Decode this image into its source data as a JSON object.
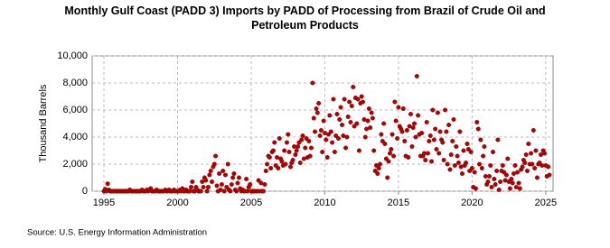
{
  "chart_data": {
    "type": "scatter",
    "title": "Monthly Gulf Coast (PADD 3) Imports by PADD of Processing from Brazil of Crude Oil and Petroleum Products",
    "y_label": "Thousand Barrels",
    "source": "Source: U.S. Energy Information Administration",
    "color": "#b30000",
    "grid": true,
    "xlim": [
      1994.2,
      2025.5
    ],
    "xticks": [
      1995,
      2000,
      2005,
      2010,
      2015,
      2020,
      2025
    ],
    "ylim": [
      0,
      10000
    ],
    "yticks": [
      0,
      {
        "value": 2000,
        "label": "2,000"
      },
      {
        "value": 4000,
        "label": "4,000"
      },
      {
        "value": 6000,
        "label": "6,000"
      },
      {
        "value": 8000,
        "label": "8,000"
      },
      {
        "value": 10000,
        "label": "10,000"
      }
    ],
    "x": [
      1995,
      1995.08,
      1995.17,
      1995.25,
      1995.33,
      1995.42,
      1995.5,
      1995.58,
      1995.67,
      1995.75,
      1995.83,
      1995.92,
      1996,
      1996.08,
      1996.17,
      1996.25,
      1996.33,
      1996.42,
      1996.5,
      1996.58,
      1996.67,
      1996.75,
      1996.83,
      1996.92,
      1997,
      1997.08,
      1997.17,
      1997.25,
      1997.33,
      1997.42,
      1997.5,
      1997.58,
      1997.67,
      1997.75,
      1997.83,
      1997.92,
      1998,
      1998.08,
      1998.17,
      1998.25,
      1998.33,
      1998.42,
      1998.5,
      1998.58,
      1998.67,
      1998.75,
      1998.83,
      1998.92,
      1999,
      1999.08,
      1999.17,
      1999.25,
      1999.33,
      1999.42,
      1999.5,
      1999.58,
      1999.67,
      1999.75,
      1999.83,
      1999.92,
      2000,
      2000.08,
      2000.17,
      2000.25,
      2000.33,
      2000.42,
      2000.5,
      2000.58,
      2000.67,
      2000.75,
      2000.83,
      2000.92,
      2001,
      2001.08,
      2001.17,
      2001.25,
      2001.33,
      2001.42,
      2001.5,
      2001.58,
      2001.67,
      2001.75,
      2001.83,
      2001.92,
      2002,
      2002.08,
      2002.17,
      2002.25,
      2002.33,
      2002.42,
      2002.5,
      2002.58,
      2002.67,
      2002.75,
      2002.83,
      2002.92,
      2003,
      2003.08,
      2003.17,
      2003.25,
      2003.33,
      2003.42,
      2003.5,
      2003.58,
      2003.67,
      2003.75,
      2003.83,
      2003.92,
      2004,
      2004.08,
      2004.17,
      2004.25,
      2004.33,
      2004.42,
      2004.5,
      2004.58,
      2004.67,
      2004.75,
      2004.83,
      2004.92,
      2005,
      2005.08,
      2005.17,
      2005.25,
      2005.33,
      2005.42,
      2005.5,
      2005.58,
      2005.67,
      2005.75,
      2005.83,
      2005.92,
      2006,
      2006.08,
      2006.17,
      2006.25,
      2006.33,
      2006.42,
      2006.5,
      2006.58,
      2006.67,
      2006.75,
      2006.83,
      2006.92,
      2007,
      2007.08,
      2007.17,
      2007.25,
      2007.33,
      2007.42,
      2007.5,
      2007.58,
      2007.67,
      2007.75,
      2007.83,
      2007.92,
      2008,
      2008.08,
      2008.17,
      2008.25,
      2008.33,
      2008.42,
      2008.5,
      2008.58,
      2008.67,
      2008.75,
      2008.83,
      2008.92,
      2009,
      2009.08,
      2009.17,
      2009.25,
      2009.33,
      2009.42,
      2009.5,
      2009.58,
      2009.67,
      2009.75,
      2009.83,
      2009.92,
      2010,
      2010.08,
      2010.17,
      2010.25,
      2010.33,
      2010.42,
      2010.5,
      2010.58,
      2010.67,
      2010.75,
      2010.83,
      2010.92,
      2011,
      2011.08,
      2011.17,
      2011.25,
      2011.33,
      2011.42,
      2011.5,
      2011.58,
      2011.67,
      2011.75,
      2011.83,
      2011.92,
      2012,
      2012.08,
      2012.17,
      2012.25,
      2012.33,
      2012.42,
      2012.5,
      2012.58,
      2012.67,
      2012.75,
      2012.83,
      2012.92,
      2013,
      2013.08,
      2013.17,
      2013.25,
      2013.33,
      2013.42,
      2013.5,
      2013.58,
      2013.67,
      2013.75,
      2013.83,
      2013.92,
      2014,
      2014.08,
      2014.17,
      2014.25,
      2014.33,
      2014.42,
      2014.5,
      2014.58,
      2014.67,
      2014.75,
      2014.83,
      2014.92,
      2015,
      2015.08,
      2015.17,
      2015.25,
      2015.33,
      2015.42,
      2015.5,
      2015.58,
      2015.67,
      2015.75,
      2015.83,
      2015.92,
      2016,
      2016.08,
      2016.17,
      2016.25,
      2016.33,
      2016.42,
      2016.5,
      2016.58,
      2016.67,
      2016.75,
      2016.83,
      2016.92,
      2017,
      2017.08,
      2017.17,
      2017.25,
      2017.33,
      2017.42,
      2017.5,
      2017.58,
      2017.67,
      2017.75,
      2017.83,
      2017.92,
      2018,
      2018.08,
      2018.17,
      2018.25,
      2018.33,
      2018.42,
      2018.5,
      2018.58,
      2018.67,
      2018.75,
      2018.83,
      2018.92,
      2019,
      2019.08,
      2019.17,
      2019.25,
      2019.33,
      2019.42,
      2019.5,
      2019.58,
      2019.67,
      2019.75,
      2019.83,
      2019.92,
      2020,
      2020.08,
      2020.17,
      2020.25,
      2020.33,
      2020.42,
      2020.5,
      2020.58,
      2020.67,
      2020.75,
      2020.83,
      2020.92,
      2021,
      2021.08,
      2021.17,
      2021.25,
      2021.33,
      2021.42,
      2021.5,
      2021.58,
      2021.67,
      2021.75,
      2021.83,
      2021.92,
      2022,
      2022.08,
      2022.17,
      2022.25,
      2022.33,
      2022.42,
      2022.5,
      2022.58,
      2022.67,
      2022.75,
      2022.83,
      2022.92,
      2023,
      2023.08,
      2023.17,
      2023.25,
      2023.33,
      2023.42,
      2023.5,
      2023.58,
      2023.67,
      2023.75,
      2023.83,
      2023.92,
      2024,
      2024.08,
      2024.17,
      2024.25,
      2024.33,
      2024.42,
      2024.5,
      2024.58,
      2024.67,
      2024.75,
      2024.83,
      2024.92,
      2025,
      2025.08,
      2025.17,
      2025.25
    ],
    "values": [
      0,
      150,
      0,
      550,
      100,
      0,
      0,
      0,
      0,
      0,
      0,
      0,
      0,
      0,
      0,
      0,
      0,
      0,
      0,
      0,
      0,
      100,
      0,
      0,
      0,
      0,
      0,
      0,
      0,
      0,
      0,
      100,
      0,
      0,
      0,
      100,
      0,
      100,
      200,
      0,
      0,
      0,
      0,
      100,
      0,
      0,
      0,
      0,
      0,
      0,
      100,
      0,
      0,
      100,
      0,
      0,
      0,
      100,
      0,
      0,
      0,
      0,
      100,
      0,
      200,
      0,
      0,
      100,
      0,
      0,
      0,
      300,
      700,
      0,
      0,
      300,
      100,
      0,
      0,
      0,
      700,
      300,
      1000,
      800,
      0,
      300,
      1200,
      1500,
      700,
      1800,
      2000,
      2600,
      400,
      0,
      1300,
      100,
      500,
      1500,
      0,
      1200,
      300,
      2000,
      100,
      0,
      500,
      1000,
      1300,
      100,
      0,
      600,
      1000,
      200,
      0,
      100,
      0,
      0,
      900,
      0,
      300,
      500,
      0,
      0,
      0,
      0,
      0,
      0,
      800,
      0,
      600,
      0,
      0,
      500,
      1500,
      2000,
      2600,
      2500,
      1700,
      2900,
      3000,
      3600,
      1900,
      2500,
      1700,
      3900,
      2400,
      2200,
      1900,
      3000,
      2000,
      3600,
      4200,
      2900,
      1800,
      2100,
      2300,
      3300,
      2700,
      3000,
      3300,
      3600,
      2100,
      3800,
      4100,
      2400,
      3200,
      3900,
      2500,
      3700,
      2600,
      3200,
      8000,
      5400,
      4400,
      6100,
      5800,
      6500,
      4100,
      4500,
      2900,
      5200,
      4300,
      3800,
      2500,
      4200,
      5600,
      4400,
      3600,
      6800,
      2900,
      4100,
      5700,
      3900,
      5300,
      6200,
      4900,
      4100,
      6800,
      3200,
      4000,
      5500,
      6600,
      5100,
      6300,
      7700,
      4800,
      6900,
      5000,
      6800,
      3000,
      6500,
      7000,
      6600,
      5300,
      4000,
      4600,
      5200,
      6100,
      4700,
      5800,
      5400,
      3000,
      1500,
      1900,
      1300,
      1700,
      2000,
      4200,
      3700,
      5000,
      3500,
      2400,
      1000,
      2200,
      2800,
      3100,
      4200,
      2600,
      6600,
      5200,
      3900,
      6200,
      4800,
      4600,
      4400,
      6100,
      3700,
      2600,
      4500,
      2500,
      4800,
      5700,
      3300,
      4700,
      5000,
      4000,
      8500,
      5600,
      4200,
      2600,
      4300,
      2600,
      2800,
      2300,
      5100,
      2800,
      3700,
      4100,
      2200,
      6000,
      3800,
      4600,
      3100,
      5800,
      2800,
      4400,
      3800,
      3600,
      2300,
      6000,
      4400,
      2000,
      4900,
      1600,
      2700,
      3700,
      5300,
      1900,
      3300,
      2600,
      2100,
      4400,
      1800,
      1300,
      3000,
      1900,
      2100,
      3500,
      3100,
      1500,
      2900,
      1700,
      300,
      1400,
      200,
      5100,
      4600,
      2000,
      3800,
      1700,
      2600,
      3300,
      1100,
      500,
      700,
      1100,
      1900,
      300,
      2900,
      900,
      500,
      1500,
      3800,
      100,
      700,
      1500,
      1900,
      1400,
      800,
      1200,
      2400,
      700,
      200,
      900,
      600,
      1300,
      1900,
      300,
      1400,
      600,
      200,
      1600,
      1800,
      2300,
      2100,
      2700,
      1500,
      3500,
      2000,
      2800,
      2000,
      4500,
      1700,
      3000,
      1000,
      2000,
      2100,
      2700,
      1900,
      3000,
      2800,
      1900,
      1100,
      1800,
      1200
    ]
  }
}
